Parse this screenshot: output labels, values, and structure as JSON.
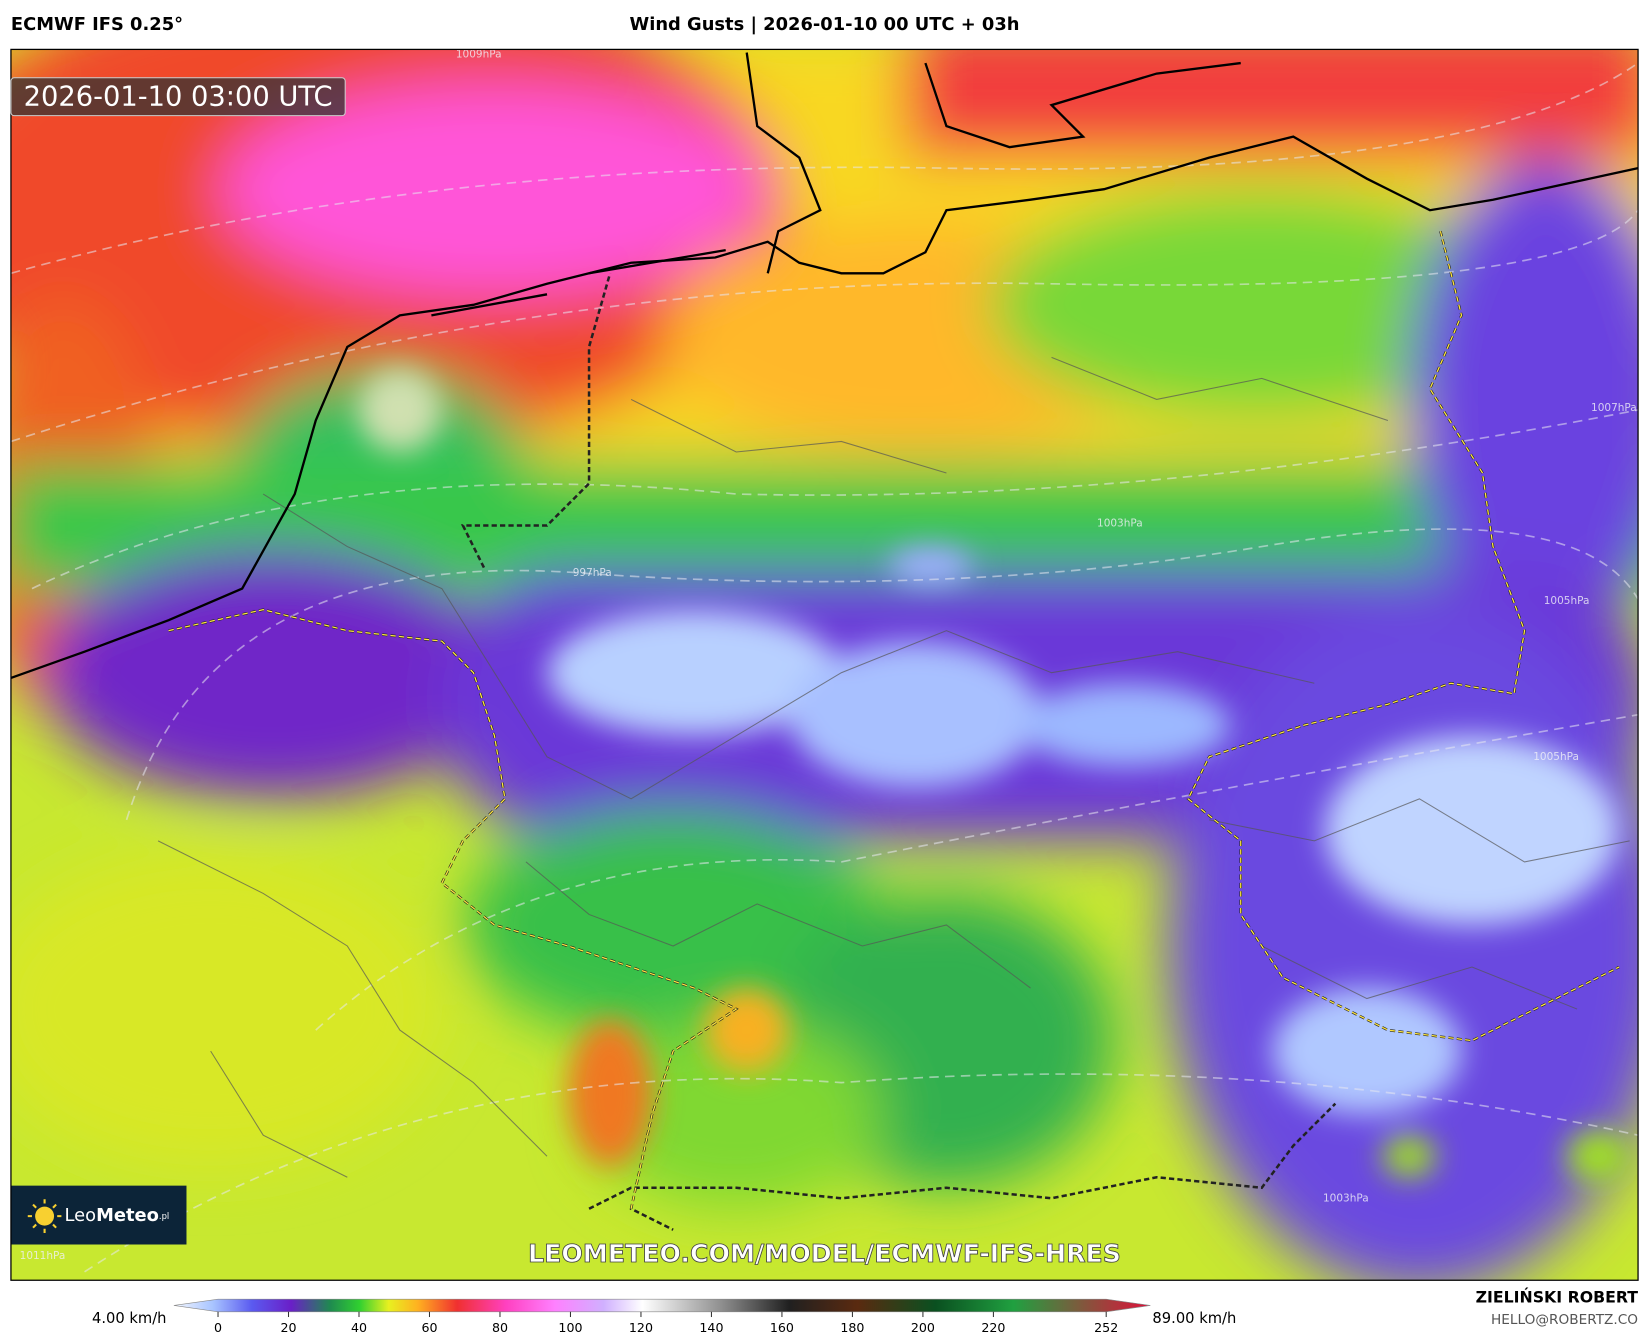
{
  "header": {
    "model": "ECMWF IFS 0.25°",
    "title": "Wind Gusts | 2026-01-10 00 UTC + 03h"
  },
  "map": {
    "timestamp": "2026-01-10 03:00 UTC",
    "watermark": "LEOMETEO.COM/MODEL/ECMWF-IFS-HRES",
    "isobar_labels": [
      "1009hPa",
      "1007hPa",
      "1003hPa",
      "997hPa",
      "1005hPa",
      "1005hPa",
      "1003hPa",
      "1011hPa"
    ]
  },
  "logo": {
    "name_light": "Leo",
    "name_bold": "Meteo",
    "suffix": ".pl"
  },
  "colorbar": {
    "min_label": "4.00 km/h",
    "max_label": "89.00 km/h",
    "range": [
      0,
      252
    ],
    "ticks": [
      0,
      20,
      40,
      60,
      80,
      100,
      120,
      140,
      160,
      180,
      200,
      220,
      252
    ]
  },
  "author": {
    "name": "ZIELIŃSKI ROBERT",
    "email": "HELLO@ROBERTZ.CO"
  }
}
